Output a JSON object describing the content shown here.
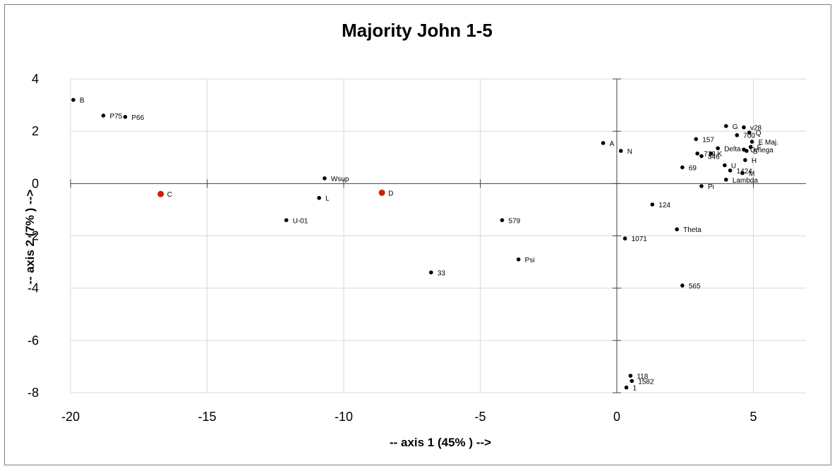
{
  "chart_data": {
    "type": "scatter",
    "title": "Majority John 1-5",
    "xlabel": "-- axis 1 (45%  ) -->",
    "ylabel": "-- axis 2 (7% ) -->",
    "xlim": [
      -20,
      7
    ],
    "ylim": [
      -8,
      4
    ],
    "xticks": [
      "-20",
      "-15",
      "-10",
      "-5",
      "0",
      "5"
    ],
    "yticks": [
      "4",
      "2",
      "0",
      "-2",
      "-4",
      "-6",
      "-8"
    ],
    "grid": true,
    "colors": {
      "default": "#000000",
      "highlight": "#cc2200",
      "grid": "#d9d9d9"
    },
    "points": [
      {
        "label": "B",
        "x": -19.9,
        "y": 3.2
      },
      {
        "label": "P75",
        "x": -18.8,
        "y": 2.6
      },
      {
        "label": "P66",
        "x": -18.0,
        "y": 2.55
      },
      {
        "label": "C",
        "x": -16.7,
        "y": -0.4,
        "highlight": true
      },
      {
        "label": "Wsup",
        "x": -10.7,
        "y": 0.2
      },
      {
        "label": "L",
        "x": -10.9,
        "y": -0.55
      },
      {
        "label": "U-01",
        "x": -12.1,
        "y": -1.4
      },
      {
        "label": "D",
        "x": -8.6,
        "y": -0.35,
        "highlight": true
      },
      {
        "label": "33",
        "x": -6.8,
        "y": -3.4
      },
      {
        "label": "579",
        "x": -4.2,
        "y": -1.4
      },
      {
        "label": "Psi",
        "x": -3.6,
        "y": -2.9
      },
      {
        "label": "A",
        "x": -0.5,
        "y": 1.55
      },
      {
        "label": "N",
        "x": 0.15,
        "y": 1.25
      },
      {
        "label": "1071",
        "x": 0.3,
        "y": -2.1
      },
      {
        "label": "124",
        "x": 1.3,
        "y": -0.8
      },
      {
        "label": "Theta",
        "x": 2.2,
        "y": -1.75
      },
      {
        "label": "565",
        "x": 2.4,
        "y": -3.9
      },
      {
        "label": "69",
        "x": 2.4,
        "y": 0.62
      },
      {
        "label": "157",
        "x": 2.9,
        "y": 1.7
      },
      {
        "label": "Delta",
        "x": 3.7,
        "y": 1.35
      },
      {
        "label": "713",
        "x": 2.95,
        "y": 1.15
      },
      {
        "label": "K",
        "x": 3.45,
        "y": 1.15
      },
      {
        "label": "346",
        "x": 3.1,
        "y": 1.05
      },
      {
        "label": "U",
        "x": 3.95,
        "y": 0.7
      },
      {
        "label": "1424",
        "x": 4.15,
        "y": 0.5
      },
      {
        "label": "Lambda",
        "x": 4.0,
        "y": 0.15
      },
      {
        "label": "Pi",
        "x": 3.1,
        "y": -0.1
      },
      {
        "label": "G",
        "x": 4.0,
        "y": 2.2
      },
      {
        "label": "v28",
        "x": 4.65,
        "y": 2.15
      },
      {
        "label": "Q",
        "x": 4.85,
        "y": 1.95
      },
      {
        "label": "700",
        "x": 4.4,
        "y": 1.85
      },
      {
        "label": "E Maj.",
        "x": 4.95,
        "y": 1.6
      },
      {
        "label": "F",
        "x": 4.9,
        "y": 1.4
      },
      {
        "label": "Omega",
        "x": 4.65,
        "y": 1.3
      },
      {
        "label": "S",
        "x": 4.75,
        "y": 1.25
      },
      {
        "label": "H",
        "x": 4.7,
        "y": 0.9
      },
      {
        "label": "M",
        "x": 4.6,
        "y": 0.4
      },
      {
        "label": "118",
        "x": 0.5,
        "y": -7.35
      },
      {
        "label": "1582",
        "x": 0.55,
        "y": -7.55
      },
      {
        "label": "1",
        "x": 0.35,
        "y": -7.8
      }
    ]
  }
}
